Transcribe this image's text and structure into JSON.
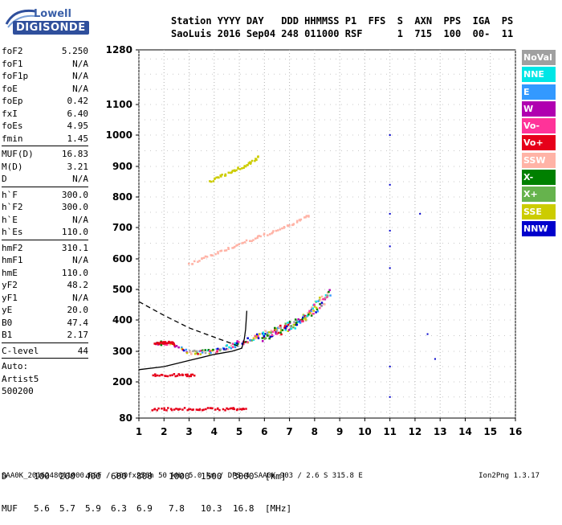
{
  "logo": {
    "line1": "Lowell",
    "line2": "DIGISONDE"
  },
  "header": {
    "line1": "Station YYYY DAY   DDD HHMMSS P1  FFS  S  AXN  PPS  IGA  PS",
    "line2": "SaoLuis 2016 Sep04 248 011000 RSF      1  715  100  00-  11"
  },
  "params": {
    "group1": [
      {
        "name": "foF2",
        "value": "5.250"
      },
      {
        "name": "foF1",
        "value": "N/A"
      },
      {
        "name": "foF1p",
        "value": "N/A"
      },
      {
        "name": "foE",
        "value": "N/A"
      },
      {
        "name": "foEp",
        "value": "0.42"
      },
      {
        "name": "fxI",
        "value": "6.40"
      },
      {
        "name": "foEs",
        "value": "4.95"
      },
      {
        "name": "fmin",
        "value": "1.45"
      }
    ],
    "group2": [
      {
        "name": "MUF(D)",
        "value": "16.83"
      },
      {
        "name": "M(D)",
        "value": "3.21"
      },
      {
        "name": "D",
        "value": "N/A"
      }
    ],
    "group3": [
      {
        "name": "h`F",
        "value": "300.0"
      },
      {
        "name": "h`F2",
        "value": "300.0"
      },
      {
        "name": "h`E",
        "value": "N/A"
      },
      {
        "name": "h`Es",
        "value": "110.0"
      }
    ],
    "group4": [
      {
        "name": "hmF2",
        "value": "310.1"
      },
      {
        "name": "hmF1",
        "value": "N/A"
      },
      {
        "name": "hmE",
        "value": "110.0"
      },
      {
        "name": "yF2",
        "value": "48.2"
      },
      {
        "name": "yF1",
        "value": "N/A"
      },
      {
        "name": "yE",
        "value": "20.0"
      },
      {
        "name": "B0",
        "value": "47.4"
      },
      {
        "name": "B1",
        "value": "2.17"
      }
    ],
    "clevel": {
      "name": "C-level",
      "value": "44"
    },
    "auto": [
      "Auto:",
      "Artist5",
      "500200"
    ]
  },
  "legend": [
    {
      "label": "NoVal",
      "color": "#a0a0a0"
    },
    {
      "label": "NNE",
      "color": "#00e6e6"
    },
    {
      "label": "E",
      "color": "#3399ff"
    },
    {
      "label": "W",
      "color": "#b000b0"
    },
    {
      "label": "Vo-",
      "color": "#ff3399"
    },
    {
      "label": "Vo+",
      "color": "#e6001a"
    },
    {
      "label": "SSW",
      "color": "#ffb3a6"
    },
    {
      "label": "X-",
      "color": "#008000"
    },
    {
      "label": "X+",
      "color": "#66b34d"
    },
    {
      "label": "SSE",
      "color": "#cccc00"
    },
    {
      "label": "NNW",
      "color": "#0000cc"
    }
  ],
  "chart_data": {
    "type": "scatter",
    "title": "",
    "xlabel": "",
    "ylabel": "",
    "x_ticks": [
      "1",
      "2",
      "3",
      "4",
      "5",
      "6",
      "7",
      "8",
      "9",
      "10",
      "11",
      "12",
      "13",
      "14",
      "15",
      "16"
    ],
    "y_ticks": [
      "80",
      "200",
      "300",
      "400",
      "500",
      "600",
      "700",
      "800",
      "900",
      "1000",
      "1100",
      "1280"
    ],
    "xlim": [
      1,
      16
    ],
    "ylim": [
      80,
      1280
    ],
    "y_scale": "nonlinear",
    "grid": true,
    "traces": [
      {
        "name": "F2 trace (O-mode)",
        "color": "#e6001a",
        "points": [
          [
            1.6,
            328
          ],
          [
            2.2,
            330
          ],
          [
            3.0,
            300
          ],
          [
            3.5,
            300
          ],
          [
            4.0,
            305
          ],
          [
            4.5,
            315
          ],
          [
            5.0,
            330
          ],
          [
            5.5,
            345
          ],
          [
            6.0,
            360
          ],
          [
            6.5,
            375
          ],
          [
            7.0,
            390
          ],
          [
            7.5,
            410
          ],
          [
            7.9,
            440
          ],
          [
            8.2,
            480
          ]
        ]
      },
      {
        "name": "F2 trace (X-mode)",
        "color": "#cccc00",
        "points": [
          [
            5.8,
            340
          ],
          [
            6.3,
            355
          ],
          [
            6.8,
            370
          ],
          [
            7.3,
            390
          ],
          [
            7.8,
            420
          ],
          [
            8.3,
            460
          ],
          [
            8.6,
            500
          ]
        ]
      },
      {
        "name": "2F trace",
        "color": "#ffb3a6",
        "points": [
          [
            3.0,
            585
          ],
          [
            4.0,
            620
          ],
          [
            5.0,
            650
          ],
          [
            6.0,
            680
          ],
          [
            7.0,
            710
          ],
          [
            7.8,
            745
          ]
        ]
      },
      {
        "name": "3F trace",
        "color": "#cccc00",
        "points": [
          [
            3.8,
            855
          ],
          [
            4.5,
            880
          ],
          [
            5.2,
            905
          ],
          [
            5.8,
            935
          ]
        ]
      },
      {
        "name": "Es trace",
        "color": "#e6001a",
        "points": [
          [
            1.5,
            113
          ],
          [
            2.5,
            113
          ],
          [
            3.5,
            113
          ],
          [
            4.5,
            113
          ],
          [
            5.3,
            113
          ]
        ]
      },
      {
        "name": "2Es trace",
        "color": "#e6001a",
        "points": [
          [
            1.5,
            225
          ],
          [
            2.5,
            225
          ],
          [
            3.2,
            225
          ]
        ]
      },
      {
        "name": "Es layer at 330",
        "color": "#e6001a",
        "points": [
          [
            1.6,
            330
          ],
          [
            2.0,
            330
          ],
          [
            2.4,
            330
          ]
        ]
      },
      {
        "name": "Scattered (11 MHz)",
        "color": "#0000cc",
        "points": [
          [
            11.0,
            1000
          ],
          [
            11.0,
            840
          ],
          [
            11.0,
            745
          ],
          [
            11.0,
            690
          ],
          [
            11.0,
            640
          ],
          [
            11.0,
            570
          ],
          [
            11.0,
            250
          ],
          [
            11.0,
            150
          ],
          [
            12.2,
            745
          ],
          [
            12.5,
            355
          ],
          [
            12.8,
            275
          ]
        ]
      }
    ],
    "profile": {
      "solid": [
        [
          1.0,
          240
        ],
        [
          2.0,
          250
        ],
        [
          3.0,
          270
        ],
        [
          4.0,
          290
        ],
        [
          4.7,
          300
        ],
        [
          5.1,
          310
        ],
        [
          5.2,
          340
        ],
        [
          5.25,
          370
        ],
        [
          5.3,
          430
        ]
      ],
      "dashed": [
        [
          1.0,
          460
        ],
        [
          2.0,
          415
        ],
        [
          3.0,
          375
        ],
        [
          4.0,
          345
        ],
        [
          4.7,
          325
        ],
        [
          5.1,
          312
        ]
      ]
    }
  },
  "table": {
    "D": [
      "D",
      "100",
      "200",
      "400",
      "600",
      "800",
      "1000",
      "1500",
      "3000",
      "[km]"
    ],
    "MUF": [
      "MUF",
      "5.6",
      "5.7",
      "5.9",
      "6.3",
      "6.9",
      "7.8",
      "10.3",
      "16.8",
      "[MHz]"
    ]
  },
  "footer": "SAA0K_2016248011000.RSF / 300fx256h 50 kHz 5.0 km / DPS-4 SAA0K 903 / 2.6 S 315.8 E",
  "version": "Ion2Png 1.3.17"
}
